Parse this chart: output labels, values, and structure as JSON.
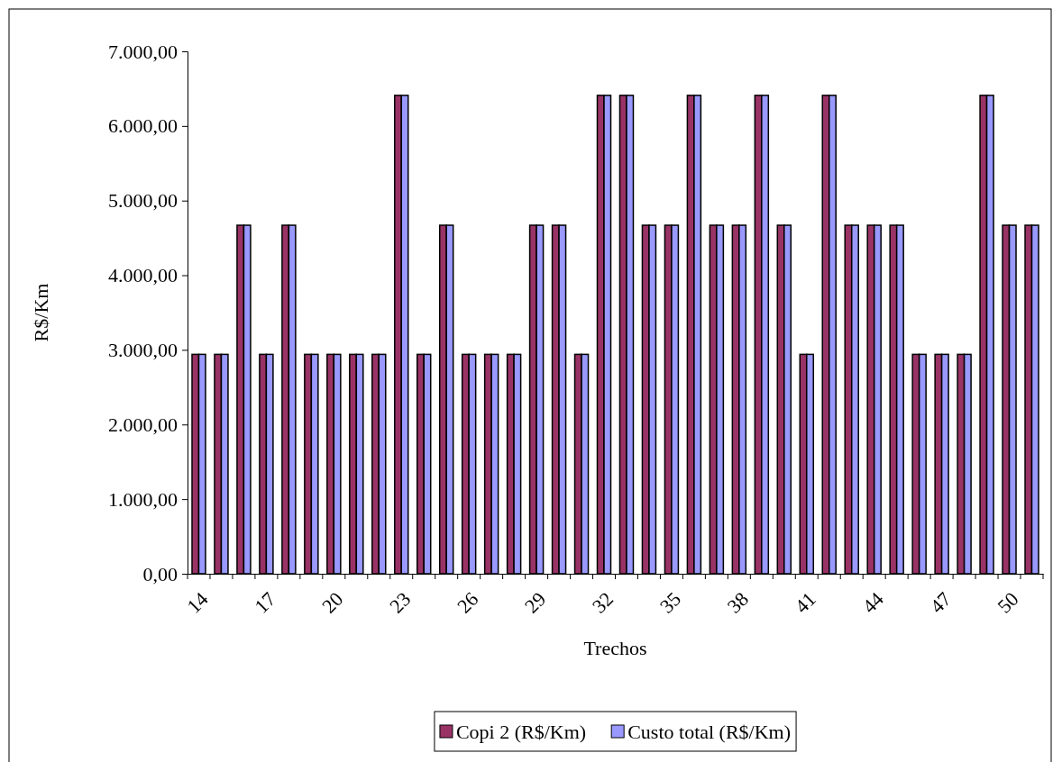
{
  "chart_data": {
    "type": "bar",
    "xlabel": "Trechos",
    "ylabel": "R$/Km",
    "categories": [
      "14",
      null,
      null,
      "17",
      null,
      null,
      "20",
      null,
      null,
      "23",
      null,
      null,
      "26",
      null,
      null,
      "29",
      null,
      null,
      "32",
      null,
      null,
      "35",
      null,
      null,
      "38",
      null,
      null,
      "41",
      null,
      null,
      "44",
      null,
      null,
      "47",
      null,
      null,
      "50",
      null
    ],
    "series": [
      {
        "name": "Copi 2 (R$/Km)",
        "color": "#993366",
        "values": [
          2940,
          2940,
          4670,
          2940,
          4670,
          2940,
          2940,
          2940,
          2940,
          6410,
          2940,
          4670,
          2940,
          2940,
          2940,
          4670,
          4670,
          2940,
          6410,
          6410,
          4670,
          4670,
          6410,
          4670,
          4670,
          6410,
          4670,
          2940,
          6410,
          4670,
          4670,
          4670,
          2940,
          2940,
          2940,
          6410,
          4670,
          4670
        ]
      },
      {
        "name": "Custo total (R$/Km)",
        "color": "#9999ff",
        "values": [
          2940,
          2940,
          4670,
          2940,
          4670,
          2940,
          2940,
          2940,
          2940,
          6410,
          2940,
          4670,
          2940,
          2940,
          2940,
          4670,
          4670,
          2940,
          6410,
          6410,
          4670,
          4670,
          6410,
          4670,
          4670,
          6410,
          4670,
          2940,
          6410,
          4670,
          4670,
          4670,
          2940,
          2940,
          2940,
          6410,
          4670,
          4670
        ]
      }
    ],
    "ylim": [
      0,
      7000
    ],
    "yticks": [
      {
        "value": 0,
        "label": "0,00"
      },
      {
        "value": 1000,
        "label": "1.000,00"
      },
      {
        "value": 2000,
        "label": "2.000,00"
      },
      {
        "value": 3000,
        "label": "3.000,00"
      },
      {
        "value": 4000,
        "label": "4.000,00"
      },
      {
        "value": 5000,
        "label": "5.000,00"
      },
      {
        "value": 6000,
        "label": "6.000,00"
      },
      {
        "value": 7000,
        "label": "7.000,00"
      }
    ],
    "grid": false,
    "legend": "bottom"
  }
}
